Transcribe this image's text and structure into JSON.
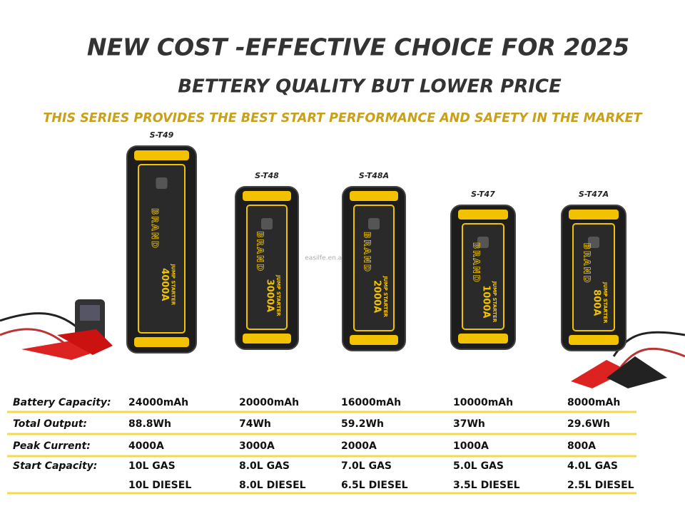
{
  "header": {
    "title": "NEW COST -EFFECTIVE CHOICE FOR 2025",
    "subtitle": "BETTERY QUALITY BUT LOWER PRICE",
    "tagline": "THIS SERIES PROVIDES THE BEST START PERFORMANCE AND SAFETY IN THE MARKET"
  },
  "watermark": "easilfe.en.alibaba.com",
  "products": [
    {
      "model": "S-T49",
      "brand": "BRAND",
      "rating": "4000A",
      "kind": "JUMP STARTER"
    },
    {
      "model": "S-T48",
      "brand": "BRAND",
      "rating": "3000A",
      "kind": "JUMP STARTER"
    },
    {
      "model": "S-T48A",
      "brand": "BRAND",
      "rating": "2000A",
      "kind": "JUMP STARTER"
    },
    {
      "model": "S-T47",
      "brand": "BRAND",
      "rating": "1000A",
      "kind": "JUMP STARTER"
    },
    {
      "model": "S-T47A",
      "brand": "BRAND",
      "rating": "800A",
      "kind": "JUMP STARTER"
    }
  ],
  "table": {
    "rows": [
      {
        "label": "Battery Capacity:",
        "cells": [
          "24000mAh",
          "20000mAh",
          "16000mAh",
          "10000mAh",
          "8000mAh"
        ]
      },
      {
        "label": "Total Output:",
        "cells": [
          "88.8Wh",
          "74Wh",
          "59.2Wh",
          "37Wh",
          "29.6Wh"
        ]
      },
      {
        "label": "Peak Current:",
        "cells": [
          "4000A",
          "3000A",
          "2000A",
          "1000A",
          "800A"
        ]
      },
      {
        "label": "Start Capacity:",
        "cells": [
          [
            "10L GAS",
            "10L DIESEL"
          ],
          [
            "8.0L GAS",
            "8.0L DIESEL"
          ],
          [
            "7.0L GAS",
            "6.5L DIESEL"
          ],
          [
            "5.0L GAS",
            "3.5L DIESEL"
          ],
          [
            "4.0L GAS",
            "2.5L DIESEL"
          ]
        ]
      }
    ]
  }
}
